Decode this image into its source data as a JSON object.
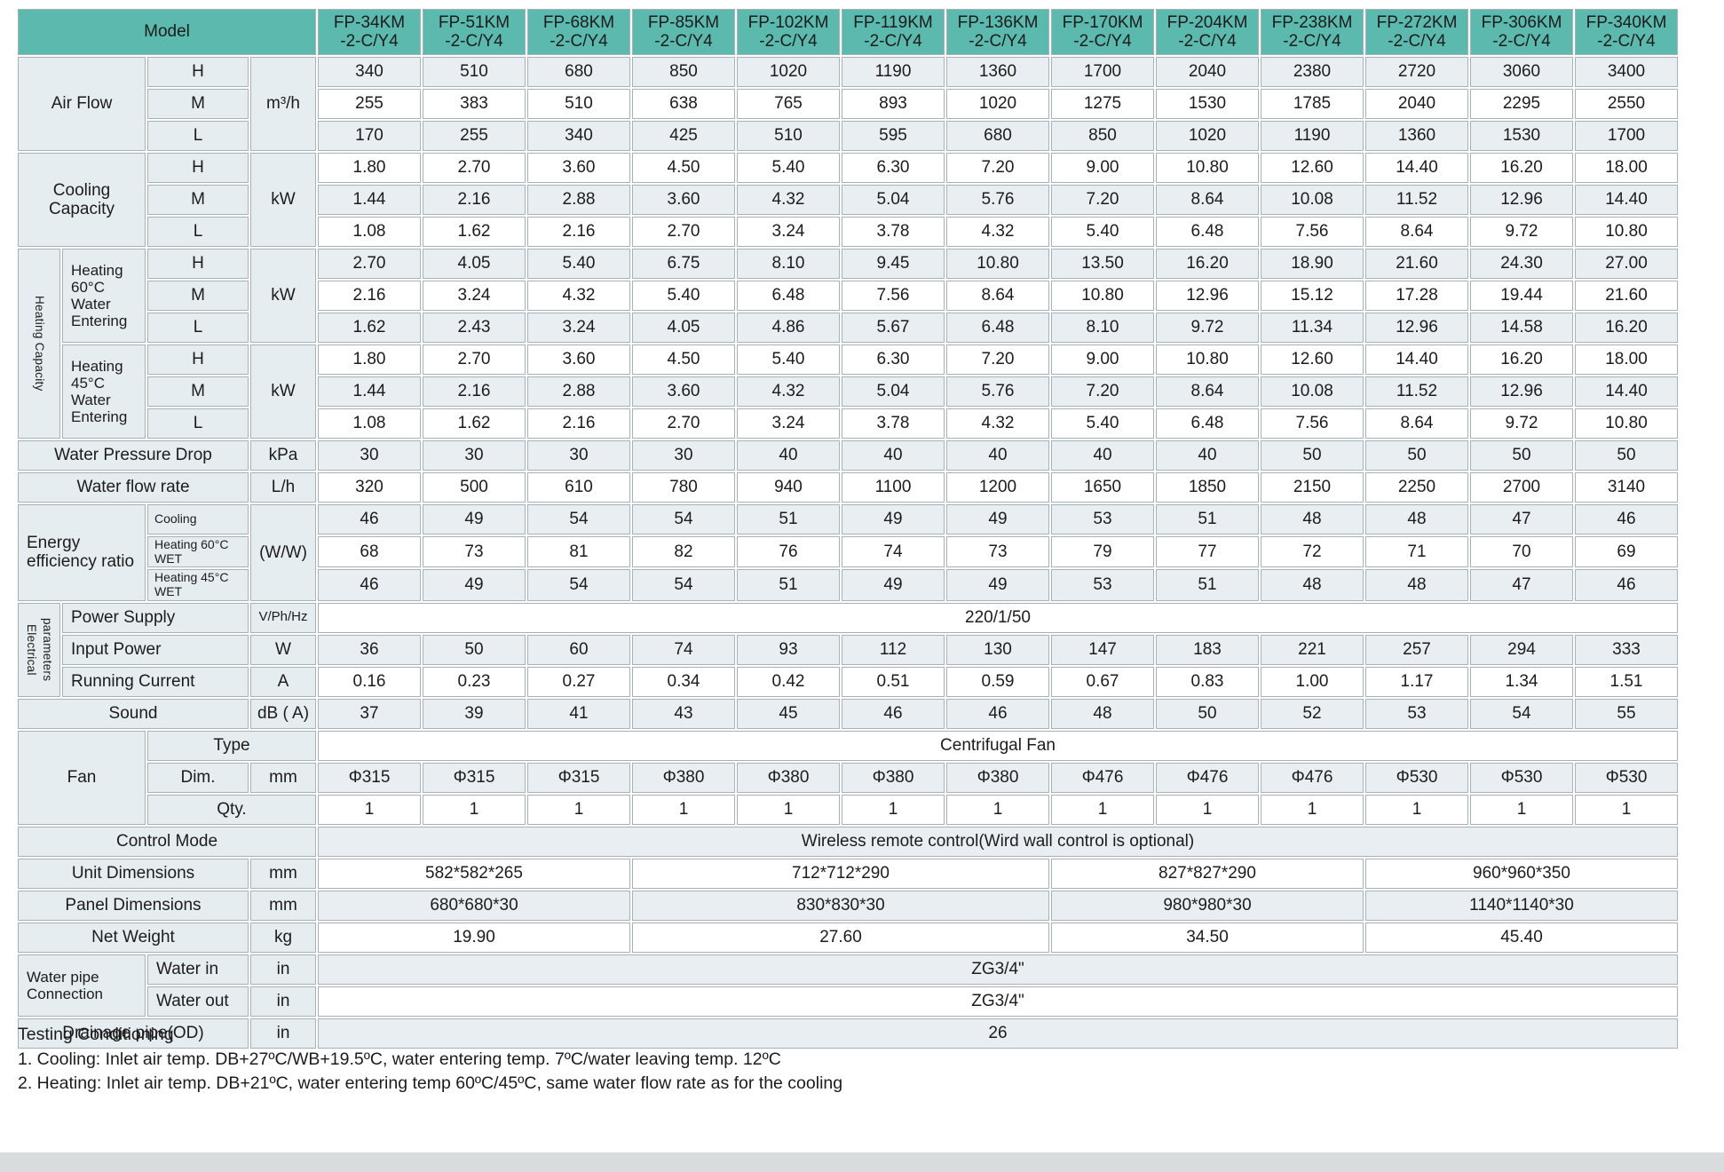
{
  "table": {
    "model_header": "Model",
    "models": [
      "FP-34KM\n-2-C/Y4",
      "FP-51KM\n-2-C/Y4",
      "FP-68KM\n-2-C/Y4",
      "FP-85KM\n-2-C/Y4",
      "FP-102KM\n-2-C/Y4",
      "FP-119KM\n-2-C/Y4",
      "FP-136KM\n-2-C/Y4",
      "FP-170KM\n-2-C/Y4",
      "FP-204KM\n-2-C/Y4",
      "FP-238KM\n-2-C/Y4",
      "FP-272KM\n-2-C/Y4",
      "FP-306KM\n-2-C/Y4",
      "FP-340KM\n-2-C/Y4"
    ],
    "colors": {
      "header_teal": "#5cb9ae",
      "shaded_row": "#e8eef1",
      "label_bg": "#e6edf0",
      "border": "#a6b2b9"
    },
    "rows": [
      {
        "name": "air-flow-h",
        "shaded": true,
        "cells": [
          {
            "text": "Air Flow",
            "kind": "label",
            "colspan": 2,
            "rowspan": 3,
            "name": "air-flow-label"
          },
          {
            "text": "H",
            "kind": "label"
          },
          {
            "text": "m³/h",
            "kind": "unit",
            "rowspan": 3
          }
        ],
        "values": [
          "340",
          "510",
          "680",
          "850",
          "1020",
          "1190",
          "1360",
          "1700",
          "2040",
          "2380",
          "2720",
          "3060",
          "3400"
        ]
      },
      {
        "name": "air-flow-m",
        "shaded": false,
        "cells": [
          {
            "text": "M",
            "kind": "label"
          }
        ],
        "values": [
          "255",
          "383",
          "510",
          "638",
          "765",
          "893",
          "1020",
          "1275",
          "1530",
          "1785",
          "2040",
          "2295",
          "2550"
        ]
      },
      {
        "name": "air-flow-l",
        "shaded": true,
        "cells": [
          {
            "text": "L",
            "kind": "label"
          }
        ],
        "values": [
          "170",
          "255",
          "340",
          "425",
          "510",
          "595",
          "680",
          "850",
          "1020",
          "1190",
          "1360",
          "1530",
          "1700"
        ]
      },
      {
        "name": "cooling-h",
        "shaded": false,
        "cells": [
          {
            "text": "Cooling Capacity",
            "kind": "label",
            "colspan": 2,
            "rowspan": 3,
            "name": "cooling-capacity-label"
          },
          {
            "text": "H",
            "kind": "label"
          },
          {
            "text": "kW",
            "kind": "unit",
            "rowspan": 3
          }
        ],
        "values": [
          "1.80",
          "2.70",
          "3.60",
          "4.50",
          "5.40",
          "6.30",
          "7.20",
          "9.00",
          "10.80",
          "12.60",
          "14.40",
          "16.20",
          "18.00"
        ]
      },
      {
        "name": "cooling-m",
        "shaded": true,
        "cells": [
          {
            "text": "M",
            "kind": "label"
          }
        ],
        "values": [
          "1.44",
          "2.16",
          "2.88",
          "3.60",
          "4.32",
          "5.04",
          "5.76",
          "7.20",
          "8.64",
          "10.08",
          "11.52",
          "12.96",
          "14.40"
        ]
      },
      {
        "name": "cooling-l",
        "shaded": false,
        "cells": [
          {
            "text": "L",
            "kind": "label"
          }
        ],
        "values": [
          "1.08",
          "1.62",
          "2.16",
          "2.70",
          "3.24",
          "3.78",
          "4.32",
          "5.40",
          "6.48",
          "7.56",
          "8.64",
          "9.72",
          "10.80"
        ]
      },
      {
        "name": "heating60-h",
        "shaded": true,
        "cells": [
          {
            "text": "Heating Capacity",
            "kind": "vertical",
            "rowspan": 6,
            "name": "heating-capacity-vertical-label"
          },
          {
            "text": "Heating 60°C Water Entering",
            "kind": "label",
            "rowspan": 3,
            "align": "left",
            "wrap": true,
            "name": "heating-60-label"
          },
          {
            "text": "H",
            "kind": "label"
          },
          {
            "text": "kW",
            "kind": "unit",
            "rowspan": 3
          }
        ],
        "values": [
          "2.70",
          "4.05",
          "5.40",
          "6.75",
          "8.10",
          "9.45",
          "10.80",
          "13.50",
          "16.20",
          "18.90",
          "21.60",
          "24.30",
          "27.00"
        ]
      },
      {
        "name": "heating60-m",
        "shaded": false,
        "cells": [
          {
            "text": "M",
            "kind": "label"
          }
        ],
        "values": [
          "2.16",
          "3.24",
          "4.32",
          "5.40",
          "6.48",
          "7.56",
          "8.64",
          "10.80",
          "12.96",
          "15.12",
          "17.28",
          "19.44",
          "21.60"
        ]
      },
      {
        "name": "heating60-l",
        "shaded": true,
        "cells": [
          {
            "text": "L",
            "kind": "label"
          }
        ],
        "values": [
          "1.62",
          "2.43",
          "3.24",
          "4.05",
          "4.86",
          "5.67",
          "6.48",
          "8.10",
          "9.72",
          "11.34",
          "12.96",
          "14.58",
          "16.20"
        ]
      },
      {
        "name": "heating45-h",
        "shaded": false,
        "cells": [
          {
            "text": "Heating 45°C Water Entering",
            "kind": "label",
            "rowspan": 3,
            "align": "left",
            "wrap": true,
            "name": "heating-45-label"
          },
          {
            "text": "H",
            "kind": "label"
          },
          {
            "text": "kW",
            "kind": "unit",
            "rowspan": 3
          }
        ],
        "values": [
          "1.80",
          "2.70",
          "3.60",
          "4.50",
          "5.40",
          "6.30",
          "7.20",
          "9.00",
          "10.80",
          "12.60",
          "14.40",
          "16.20",
          "18.00"
        ]
      },
      {
        "name": "heating45-m",
        "shaded": true,
        "cells": [
          {
            "text": "M",
            "kind": "label"
          }
        ],
        "values": [
          "1.44",
          "2.16",
          "2.88",
          "3.60",
          "4.32",
          "5.04",
          "5.76",
          "7.20",
          "8.64",
          "10.08",
          "11.52",
          "12.96",
          "14.40"
        ]
      },
      {
        "name": "heating45-l",
        "shaded": false,
        "cells": [
          {
            "text": "L",
            "kind": "label"
          }
        ],
        "values": [
          "1.08",
          "1.62",
          "2.16",
          "2.70",
          "3.24",
          "3.78",
          "4.32",
          "5.40",
          "6.48",
          "7.56",
          "8.64",
          "9.72",
          "10.80"
        ]
      },
      {
        "name": "water-pressure-drop",
        "shaded": true,
        "cells": [
          {
            "text": "Water Pressure Drop",
            "kind": "label",
            "colspan": 3
          },
          {
            "text": "kPa",
            "kind": "unit"
          }
        ],
        "values": [
          "30",
          "30",
          "30",
          "30",
          "40",
          "40",
          "40",
          "40",
          "40",
          "50",
          "50",
          "50",
          "50"
        ]
      },
      {
        "name": "water-flow-rate",
        "shaded": false,
        "cells": [
          {
            "text": "Water flow rate",
            "kind": "label",
            "colspan": 3
          },
          {
            "text": "L/h",
            "kind": "unit"
          }
        ],
        "values": [
          "320",
          "500",
          "610",
          "780",
          "940",
          "1100",
          "1200",
          "1650",
          "1850",
          "2150",
          "2250",
          "2700",
          "3140"
        ]
      },
      {
        "name": "eer-cooling",
        "shaded": true,
        "cells": [
          {
            "text": "Energy efficiency ratio",
            "kind": "label",
            "colspan": 2,
            "rowspan": 3,
            "align": "left",
            "name": "eer-label"
          },
          {
            "text": "Cooling",
            "kind": "sublabel"
          },
          {
            "text": "(W/W)",
            "kind": "unit",
            "rowspan": 3
          }
        ],
        "values": [
          "46",
          "49",
          "54",
          "54",
          "51",
          "49",
          "49",
          "53",
          "51",
          "48",
          "48",
          "47",
          "46"
        ]
      },
      {
        "name": "eer-heating-60",
        "shaded": false,
        "cells": [
          {
            "text": "Heating 60°C WET",
            "kind": "sublabel"
          }
        ],
        "values": [
          "68",
          "73",
          "81",
          "82",
          "76",
          "74",
          "73",
          "79",
          "77",
          "72",
          "71",
          "70",
          "69"
        ]
      },
      {
        "name": "eer-heating-45",
        "shaded": true,
        "cells": [
          {
            "text": "Heating 45°C WET",
            "kind": "sublabel"
          }
        ],
        "values": [
          "46",
          "49",
          "54",
          "54",
          "51",
          "49",
          "49",
          "53",
          "51",
          "48",
          "48",
          "47",
          "46"
        ]
      },
      {
        "name": "power-supply",
        "shaded": false,
        "cells": [
          {
            "text": "Electrical\nparameters",
            "kind": "vertical",
            "rowspan": 3,
            "name": "electrical-parameters-vertical-label"
          },
          {
            "text": "Power Supply",
            "kind": "label",
            "colspan": 2,
            "align": "left"
          },
          {
            "text": "V/Ph/Hz",
            "kind": "unit",
            "small": true
          }
        ],
        "merged_value": "220/1/50"
      },
      {
        "name": "input-power",
        "shaded": true,
        "cells": [
          {
            "text": "Input Power",
            "kind": "label",
            "colspan": 2,
            "align": "left"
          },
          {
            "text": "W",
            "kind": "unit"
          }
        ],
        "values": [
          "36",
          "50",
          "60",
          "74",
          "93",
          "112",
          "130",
          "147",
          "183",
          "221",
          "257",
          "294",
          "333"
        ]
      },
      {
        "name": "running-current",
        "shaded": false,
        "cells": [
          {
            "text": "Running Current",
            "kind": "label",
            "colspan": 2,
            "align": "left"
          },
          {
            "text": "A",
            "kind": "unit"
          }
        ],
        "values": [
          "0.16",
          "0.23",
          "0.27",
          "0.34",
          "0.42",
          "0.51",
          "0.59",
          "0.67",
          "0.83",
          "1.00",
          "1.17",
          "1.34",
          "1.51"
        ]
      },
      {
        "name": "sound",
        "shaded": true,
        "cells": [
          {
            "text": "Sound",
            "kind": "label",
            "colspan": 3
          },
          {
            "text": "dB ( A)",
            "kind": "unit"
          }
        ],
        "values": [
          "37",
          "39",
          "41",
          "43",
          "45",
          "46",
          "46",
          "48",
          "50",
          "52",
          "53",
          "54",
          "55"
        ]
      },
      {
        "name": "fan-type",
        "shaded": false,
        "cells": [
          {
            "text": "Fan",
            "kind": "label",
            "colspan": 2,
            "rowspan": 3,
            "name": "fan-label"
          },
          {
            "text": "Type",
            "kind": "label",
            "colspan": 2
          }
        ],
        "merged_value": "Centrifugal Fan"
      },
      {
        "name": "fan-dim",
        "shaded": true,
        "cells": [
          {
            "text": "Dim.",
            "kind": "label"
          },
          {
            "text": "mm",
            "kind": "unit"
          }
        ],
        "values": [
          "Φ315",
          "Φ315",
          "Φ315",
          "Φ380",
          "Φ380",
          "Φ380",
          "Φ380",
          "Φ476",
          "Φ476",
          "Φ476",
          "Φ530",
          "Φ530",
          "Φ530"
        ]
      },
      {
        "name": "fan-qty",
        "shaded": false,
        "cells": [
          {
            "text": "Qty.",
            "kind": "label",
            "colspan": 2
          }
        ],
        "values": [
          "1",
          "1",
          "1",
          "1",
          "1",
          "1",
          "1",
          "1",
          "1",
          "1",
          "1",
          "1",
          "1"
        ]
      },
      {
        "name": "control-mode",
        "shaded": true,
        "cells": [
          {
            "text": "Control Mode",
            "kind": "label",
            "colspan": 4
          }
        ],
        "merged_value": "Wireless remote control(Wird wall control is optional)"
      },
      {
        "name": "unit-dimensions",
        "shaded": false,
        "cells": [
          {
            "text": "Unit Dimensions",
            "kind": "label",
            "colspan": 3
          },
          {
            "text": "mm",
            "kind": "unit"
          }
        ],
        "value_groups": [
          {
            "text": "582*582*265",
            "span": 3
          },
          {
            "text": "712*712*290",
            "span": 4
          },
          {
            "text": "827*827*290",
            "span": 3
          },
          {
            "text": "960*960*350",
            "span": 3
          }
        ]
      },
      {
        "name": "panel-dimensions",
        "shaded": true,
        "cells": [
          {
            "text": "Panel Dimensions",
            "kind": "label",
            "colspan": 3
          },
          {
            "text": "mm",
            "kind": "unit"
          }
        ],
        "value_groups": [
          {
            "text": "680*680*30",
            "span": 3
          },
          {
            "text": "830*830*30",
            "span": 4
          },
          {
            "text": "980*980*30",
            "span": 3
          },
          {
            "text": "1140*1140*30",
            "span": 3
          }
        ]
      },
      {
        "name": "net-weight",
        "shaded": false,
        "cells": [
          {
            "text": "Net Weight",
            "kind": "label",
            "colspan": 3
          },
          {
            "text": "kg",
            "kind": "unit"
          }
        ],
        "value_groups": [
          {
            "text": "19.90",
            "span": 3
          },
          {
            "text": "27.60",
            "span": 4
          },
          {
            "text": "34.50",
            "span": 3
          },
          {
            "text": "45.40",
            "span": 3
          }
        ]
      },
      {
        "name": "water-in",
        "shaded": true,
        "cells": [
          {
            "text": "Water pipe Connection",
            "kind": "label",
            "colspan": 2,
            "rowspan": 2,
            "align": "left",
            "wrap": true,
            "name": "water-pipe-connection-label"
          },
          {
            "text": "Water in",
            "kind": "label",
            "align": "left"
          },
          {
            "text": "in",
            "kind": "unit"
          }
        ],
        "merged_value": "ZG3/4\""
      },
      {
        "name": "water-out",
        "shaded": false,
        "cells": [
          {
            "text": "Water out",
            "kind": "label",
            "align": "left"
          },
          {
            "text": "in",
            "kind": "unit"
          }
        ],
        "merged_value": "ZG3/4\""
      },
      {
        "name": "drainage-pipe",
        "shaded": true,
        "cells": [
          {
            "text": "Drainage pipe(OD)",
            "kind": "label",
            "colspan": 3
          },
          {
            "text": "in",
            "kind": "unit"
          }
        ],
        "merged_value": "26"
      }
    ]
  },
  "footer": {
    "title": "Testing Conditioning",
    "line1": "1. Cooling: Inlet air temp. DB+27ºC/WB+19.5ºC, water entering temp. 7ºC/water leaving temp. 12ºC",
    "line2": "2. Heating: Inlet air temp. DB+21ºC, water entering temp 60ºC/45ºC, same water flow rate as for the cooling"
  }
}
